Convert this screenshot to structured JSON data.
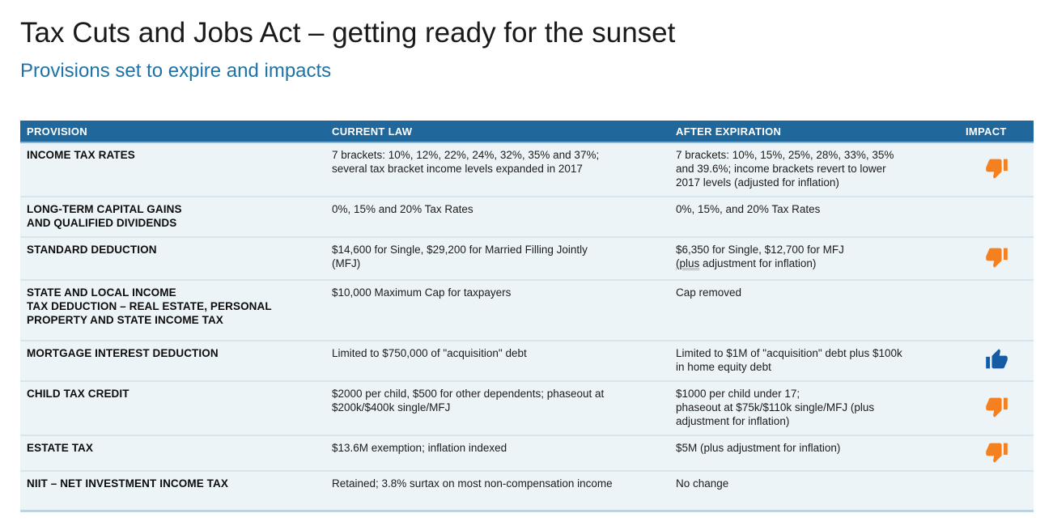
{
  "page": {
    "title": "Tax Cuts and Jobs Act – getting ready for the sunset",
    "subtitle": "Provisions set to expire and impacts"
  },
  "table": {
    "columns": [
      {
        "key": "provision",
        "label": "PROVISION"
      },
      {
        "key": "current-law",
        "label": "CURRENT LAW"
      },
      {
        "key": "after-expiration",
        "label": "AFTER EXPIRATION"
      },
      {
        "key": "impact",
        "label": "IMPACT"
      }
    ],
    "rows": [
      {
        "provision": "INCOME TAX RATES",
        "current_law": "7 brackets: 10%, 12%, 22%, 24%, 32%, 35% and 37%;\nseveral tax bracket income levels expanded in 2017",
        "after_expiration": "7 brackets: 10%, 15%, 25%, 28%, 33%, 35%\nand 39.6%; income brackets revert to lower\n2017 levels (adjusted for inflation)",
        "impact": "thumbs-down"
      },
      {
        "provision": "LONG-TERM CAPITAL GAINS\nAND QUALIFIED DIVIDENDS",
        "current_law": "0%, 15% and 20% Tax Rates",
        "after_expiration": "0%, 15%, and 20% Tax Rates",
        "impact": ""
      },
      {
        "provision": "STANDARD DEDUCTION",
        "current_law": "$14,600 for Single, $29,200 for Married Filling Jointly\n(MFJ)",
        "after_expiration": "$6,350 for Single, $12,700 for MFJ\n{u}(plus{/u} adjustment for inflation)",
        "impact": "thumbs-down"
      },
      {
        "provision": "STATE AND LOCAL INCOME\nTAX DEDUCTION – REAL ESTATE, PERSONAL\nPROPERTY AND STATE INCOME TAX",
        "current_law": "$10,000 Maximum Cap for taxpayers",
        "after_expiration": "Cap removed",
        "impact": ""
      },
      {
        "provision": "MORTGAGE INTEREST DEDUCTION",
        "current_law": "Limited to $750,000 of \"acquisition\" debt",
        "after_expiration": "Limited to $1M of \"acquisition\" debt plus $100k\nin home equity debt",
        "impact": "thumbs-up"
      },
      {
        "provision": "CHILD TAX CREDIT",
        "current_law": "$2000 per child, $500 for other dependents; phaseout at\n$200k/$400k single/MFJ",
        "after_expiration": "$1000 per child under 17;\nphaseout at $75k/$110k single/MFJ (plus\nadjustment for inflation)",
        "impact": "thumbs-down"
      },
      {
        "provision": "ESTATE TAX",
        "current_law": "$13.6M exemption; inflation indexed",
        "after_expiration": "$5M (plus adjustment for inflation)",
        "impact": "thumbs-down"
      },
      {
        "provision": "NIIT – NET INVESTMENT INCOME TAX",
        "current_law": "Retained; 3.8% surtax on most non-compensation income",
        "after_expiration": "No change",
        "impact": ""
      }
    ]
  },
  "colors": {
    "header_bg": "#20689b",
    "header_text": "#ffffff",
    "row_bg": "#edf4f8",
    "title_text": "#1a1a1a",
    "subtitle_text": "#1d72a8",
    "thumbs_up": "#155ca5",
    "thumbs_down": "#f4801f"
  }
}
